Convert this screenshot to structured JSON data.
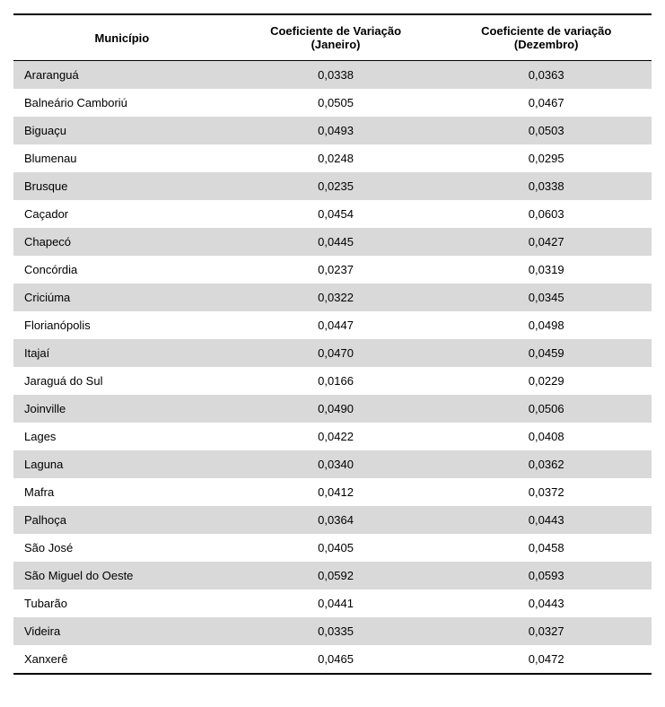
{
  "table": {
    "type": "table",
    "background_color": "#ffffff",
    "stripe_color": "#d9d9d9",
    "border_color": "#000000",
    "font_family": "Arial",
    "header_fontsize": 13,
    "body_fontsize": 13,
    "columns": [
      {
        "key": "municipio",
        "label": "Município",
        "align": "left"
      },
      {
        "key": "cv_jan",
        "label": "Coeficiente de Variação\n(Janeiro)",
        "align": "center"
      },
      {
        "key": "cv_dez",
        "label": "Coeficiente de variação\n(Dezembro)",
        "align": "center"
      }
    ],
    "rows": [
      {
        "municipio": "Araranguá",
        "cv_jan": "0,0338",
        "cv_dez": "0,0363"
      },
      {
        "municipio": "Balneário Camboriú",
        "cv_jan": "0,0505",
        "cv_dez": "0,0467"
      },
      {
        "municipio": "Biguaçu",
        "cv_jan": "0,0493",
        "cv_dez": "0,0503"
      },
      {
        "municipio": "Blumenau",
        "cv_jan": "0,0248",
        "cv_dez": "0,0295"
      },
      {
        "municipio": "Brusque",
        "cv_jan": "0,0235",
        "cv_dez": "0,0338"
      },
      {
        "municipio": "Caçador",
        "cv_jan": "0,0454",
        "cv_dez": "0,0603"
      },
      {
        "municipio": "Chapecó",
        "cv_jan": "0,0445",
        "cv_dez": "0,0427"
      },
      {
        "municipio": "Concórdia",
        "cv_jan": "0,0237",
        "cv_dez": "0,0319"
      },
      {
        "municipio": "Criciúma",
        "cv_jan": "0,0322",
        "cv_dez": "0,0345"
      },
      {
        "municipio": "Florianópolis",
        "cv_jan": "0,0447",
        "cv_dez": "0,0498"
      },
      {
        "municipio": "Itajaí",
        "cv_jan": "0,0470",
        "cv_dez": "0,0459"
      },
      {
        "municipio": "Jaraguá do Sul",
        "cv_jan": "0,0166",
        "cv_dez": "0,0229"
      },
      {
        "municipio": "Joinville",
        "cv_jan": "0,0490",
        "cv_dez": "0,0506"
      },
      {
        "municipio": "Lages",
        "cv_jan": "0,0422",
        "cv_dez": "0,0408"
      },
      {
        "municipio": "Laguna",
        "cv_jan": "0,0340",
        "cv_dez": "0,0362"
      },
      {
        "municipio": "Mafra",
        "cv_jan": "0,0412",
        "cv_dez": "0,0372"
      },
      {
        "municipio": "Palhoça",
        "cv_jan": "0,0364",
        "cv_dez": "0,0443"
      },
      {
        "municipio": "São José",
        "cv_jan": "0,0405",
        "cv_dez": "0,0458"
      },
      {
        "municipio": "São Miguel do Oeste",
        "cv_jan": "0,0592",
        "cv_dez": "0,0593"
      },
      {
        "municipio": "Tubarão",
        "cv_jan": "0,0441",
        "cv_dez": "0,0443"
      },
      {
        "municipio": "Videira",
        "cv_jan": "0,0335",
        "cv_dez": "0,0327"
      },
      {
        "municipio": "Xanxerê",
        "cv_jan": "0,0465",
        "cv_dez": "0,0472"
      }
    ]
  }
}
